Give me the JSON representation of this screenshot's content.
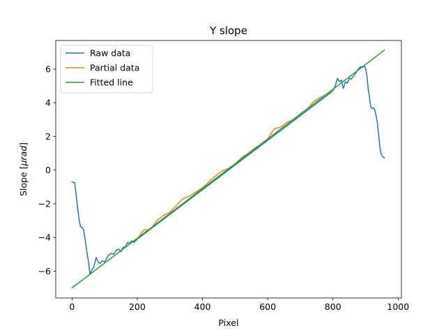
{
  "chart_data": {
    "type": "line",
    "title": "Y slope",
    "xlabel": "Pixel",
    "ylabel_prefix": "Slope [",
    "ylabel_unit": "μrad",
    "ylabel_suffix": "]",
    "xlim": [
      -50,
      1010
    ],
    "ylim": [
      -7.6,
      7.7
    ],
    "xticks": [
      0,
      200,
      400,
      600,
      800,
      1000
    ],
    "yticks": [
      -6,
      -4,
      -2,
      0,
      2,
      4,
      6
    ],
    "grid": false,
    "legend_position": "upper-left",
    "series": [
      {
        "name": "Raw data",
        "color": "#1f77b4",
        "x": [
          0,
          8,
          12,
          18,
          22,
          26,
          30,
          35,
          40,
          45,
          50,
          55,
          58,
          62,
          66,
          70,
          74,
          80,
          86,
          92,
          100,
          106,
          112,
          120,
          128,
          136,
          144,
          150,
          156,
          164,
          170,
          176,
          184,
          190,
          200,
          800,
          808,
          814,
          820,
          826,
          832,
          838,
          844,
          850,
          856,
          862,
          868,
          874,
          880,
          886,
          892,
          896,
          900,
          904,
          908,
          912,
          916,
          920,
          924,
          928,
          932,
          936,
          940,
          944,
          948,
          952,
          956,
          958
        ],
        "y": [
          -0.7,
          -0.75,
          -1.4,
          -2.4,
          -3.0,
          -3.35,
          -3.4,
          -3.5,
          -4.1,
          -4.8,
          -5.4,
          -6.2,
          -6.05,
          -5.9,
          -5.8,
          -5.5,
          -5.2,
          -5.45,
          -5.55,
          -5.4,
          -5.45,
          -5.25,
          -5.05,
          -4.95,
          -5.0,
          -4.75,
          -4.7,
          -4.85,
          -4.6,
          -4.55,
          -4.3,
          -4.35,
          -4.2,
          -4.3,
          -4.1,
          4.7,
          5.05,
          5.45,
          5.25,
          5.35,
          4.85,
          5.25,
          5.15,
          5.45,
          5.4,
          5.55,
          5.7,
          5.9,
          6.05,
          6.15,
          6.1,
          6.2,
          6.05,
          5.65,
          4.85,
          4.35,
          3.75,
          3.65,
          3.7,
          3.6,
          3.3,
          2.85,
          2.15,
          1.35,
          0.95,
          0.8,
          0.75,
          0.72
        ]
      },
      {
        "name": "Partial data",
        "color": "#ff7f0e",
        "x": [
          200,
          220,
          240,
          260,
          280,
          300,
          320,
          340,
          360,
          380,
          400,
          420,
          440,
          460,
          480,
          500,
          520,
          540,
          560,
          580,
          600,
          620,
          640,
          660,
          680,
          700,
          720,
          740,
          760,
          780,
          800
        ],
        "y": [
          -4.1,
          -3.55,
          -3.55,
          -3.0,
          -2.7,
          -2.5,
          -2.1,
          -1.7,
          -1.55,
          -1.3,
          -1.05,
          -0.7,
          -0.35,
          -0.05,
          0.1,
          0.35,
          0.75,
          1.0,
          1.3,
          1.55,
          1.85,
          2.45,
          2.55,
          2.85,
          3.0,
          3.35,
          3.6,
          4.05,
          4.3,
          4.5,
          4.7
        ]
      },
      {
        "name": "Fitted line",
        "color": "#2ca02c",
        "x": [
          0,
          958
        ],
        "y": [
          -7.0,
          7.13
        ]
      }
    ]
  }
}
